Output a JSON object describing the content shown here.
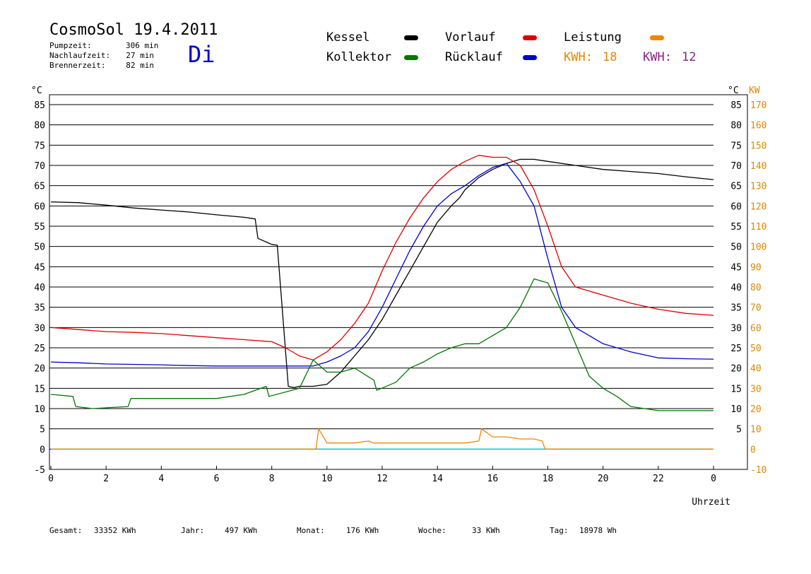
{
  "header": {
    "title": "CosmoSol 19.4.2011",
    "day": "Di",
    "stats": [
      {
        "label": "Pumpzeit:",
        "value": "306 min"
      },
      {
        "label": "Nachlaufzeit:",
        "value": "27 min"
      },
      {
        "label": "Brennerzeit:",
        "value": "82 min"
      }
    ]
  },
  "legend": {
    "kessel": {
      "label": "Kessel",
      "color": "#000000"
    },
    "vorlauf": {
      "label": "Vorlauf",
      "color": "#dd0000"
    },
    "leistung": {
      "label": "Leistung",
      "color": "#ee8800"
    },
    "kollektor": {
      "label": "Kollektor",
      "color": "#007700"
    },
    "ruecklauf": {
      "label": "Rücklauf",
      "color": "#0000cc"
    },
    "kwh1": {
      "label": "KWH:",
      "value": "18",
      "color": "#dd8800"
    },
    "kwh2": {
      "label": "KWH:",
      "value": "12",
      "color": "#882288"
    }
  },
  "footer": {
    "gesamt": {
      "label": "Gesamt:",
      "value": "33352 KWh"
    },
    "jahr": {
      "label": "Jahr:",
      "value": "497 KWh"
    },
    "monat": {
      "label": "Monat:",
      "value": "176 KWh"
    },
    "woche": {
      "label": "Woche:",
      "value": "33 KWh"
    },
    "tag": {
      "label": "Tag:",
      "value": "18978 Wh"
    }
  },
  "chart_data": {
    "type": "line",
    "title": "CosmoSol 19.4.2011",
    "xlabel": "Uhrzeit",
    "ylabel_left": "°C",
    "ylabel_right": [
      "°C",
      "KW"
    ],
    "xlim": [
      0,
      24
    ],
    "ylim": [
      -5,
      85
    ],
    "y2lim": [
      -10,
      170
    ],
    "x_tick_labels": [
      "0",
      "2",
      "4",
      "6",
      "8",
      "10",
      "12",
      "14",
      "16",
      "18",
      "20",
      "22",
      "0"
    ],
    "y_tick_labels_left": [
      "-5",
      "0",
      "5",
      "10",
      "15",
      "20",
      "25",
      "30",
      "35",
      "40",
      "45",
      "50",
      "55",
      "60",
      "65",
      "70",
      "75",
      "80",
      "85"
    ],
    "y_tick_labels_right_c": [
      "5",
      "10",
      "15",
      "20",
      "25",
      "30",
      "35",
      "40",
      "45",
      "50",
      "55",
      "60",
      "65",
      "70",
      "75",
      "80",
      "85"
    ],
    "y_tick_labels_right_kw": [
      "-10",
      "0",
      "10",
      "20",
      "30",
      "40",
      "50",
      "60",
      "70",
      "80",
      "90",
      "100",
      "110",
      "120",
      "130",
      "140",
      "150",
      "160",
      "170"
    ],
    "grid": true,
    "series": [
      {
        "name": "Kessel",
        "color": "#000000",
        "x": [
          0,
          1,
          2,
          3,
          4,
          5,
          6,
          7,
          7.4,
          7.5,
          8,
          8.2,
          8.6,
          8.8,
          9,
          9.5,
          10,
          10.5,
          11,
          11.5,
          12,
          12.5,
          13,
          13.5,
          14,
          14.5,
          14.8,
          15,
          15.5,
          16,
          16.5,
          17,
          17.5,
          18,
          19,
          20,
          21,
          22,
          23,
          24
        ],
        "y": [
          61,
          60.8,
          60.2,
          59.5,
          59,
          58.5,
          57.8,
          57.2,
          56.8,
          52,
          50.5,
          50.3,
          15.5,
          15.2,
          15.5,
          15.5,
          16,
          19,
          23,
          27,
          32,
          38,
          44,
          50,
          56,
          60,
          62,
          64,
          67,
          69,
          70.5,
          71.5,
          71.5,
          71,
          70,
          69,
          68.5,
          68,
          67.2,
          66.5
        ]
      },
      {
        "name": "Vorlauf",
        "color": "#dd0000",
        "x": [
          0,
          1,
          2,
          3,
          4,
          5,
          6,
          7,
          8,
          8.5,
          9,
          9.5,
          10,
          10.5,
          11,
          11.5,
          12,
          12.5,
          13,
          13.5,
          14,
          14.5,
          15,
          15.5,
          16,
          16.5,
          17,
          17.5,
          18,
          18.5,
          19,
          20,
          21,
          22,
          23,
          24
        ],
        "y": [
          30,
          29.5,
          29,
          28.8,
          28.5,
          28,
          27.5,
          27,
          26.5,
          25,
          23,
          22,
          24,
          27,
          31,
          36,
          44,
          51,
          57,
          62,
          66,
          69,
          71,
          72.5,
          72,
          72,
          70,
          64,
          55,
          45,
          40,
          38,
          36,
          34.5,
          33.5,
          33
        ]
      },
      {
        "name": "Rücklauf",
        "color": "#0000cc",
        "x": [
          0,
          1,
          2,
          3,
          4,
          5,
          6,
          7,
          8,
          8.5,
          9,
          9.5,
          10,
          10.5,
          11,
          11.5,
          12,
          12.5,
          13,
          13.5,
          14,
          14.5,
          15,
          15.5,
          16,
          16.5,
          17,
          17.5,
          18,
          18.5,
          19,
          20,
          21,
          22,
          23,
          24
        ],
        "y": [
          21.5,
          21.3,
          21,
          20.9,
          20.8,
          20.6,
          20.5,
          20.5,
          20.5,
          20.5,
          20.5,
          20.5,
          21.5,
          23,
          25,
          29,
          35,
          42,
          49,
          55,
          60,
          63,
          65,
          67.5,
          69.5,
          70.5,
          66,
          60,
          47,
          35,
          30,
          26,
          24,
          22.5,
          22.3,
          22.2
        ]
      },
      {
        "name": "Kollektor",
        "color": "#007700",
        "x": [
          0,
          0.8,
          0.9,
          1.5,
          2.8,
          2.9,
          4,
          5,
          6,
          7,
          7.8,
          7.9,
          9,
          9.5,
          10,
          10.5,
          11,
          11.7,
          11.8,
          12.5,
          13,
          13.5,
          14,
          14.5,
          15,
          15.5,
          16,
          16.5,
          17,
          17.5,
          18,
          18.5,
          19,
          19.5,
          20,
          20.5,
          21,
          22,
          23,
          24
        ],
        "y": [
          13.5,
          13,
          10.5,
          10,
          10.5,
          12.5,
          12.5,
          12.5,
          12.5,
          13.5,
          15.5,
          13,
          15,
          22,
          19,
          19,
          20,
          17,
          14.5,
          16.5,
          20,
          21.5,
          23.5,
          25,
          26,
          26,
          28,
          30,
          35,
          42,
          41,
          34,
          26,
          18,
          15,
          13,
          10.5,
          9.5,
          9.5,
          9.5
        ]
      },
      {
        "name": "Leistung",
        "color": "#ee8800",
        "x": [
          0,
          9.6,
          9.7,
          10,
          10.5,
          11,
          11.5,
          11.7,
          12,
          13,
          14,
          15,
          15.5,
          15.6,
          16,
          16.5,
          17,
          17.5,
          17.8,
          17.9,
          24
        ],
        "y": [
          0,
          0,
          5,
          1.5,
          1.5,
          1.5,
          2,
          1.5,
          1.5,
          1.5,
          1.5,
          1.5,
          2,
          5,
          3,
          3,
          2.5,
          2.5,
          2,
          0,
          0
        ]
      }
    ]
  }
}
